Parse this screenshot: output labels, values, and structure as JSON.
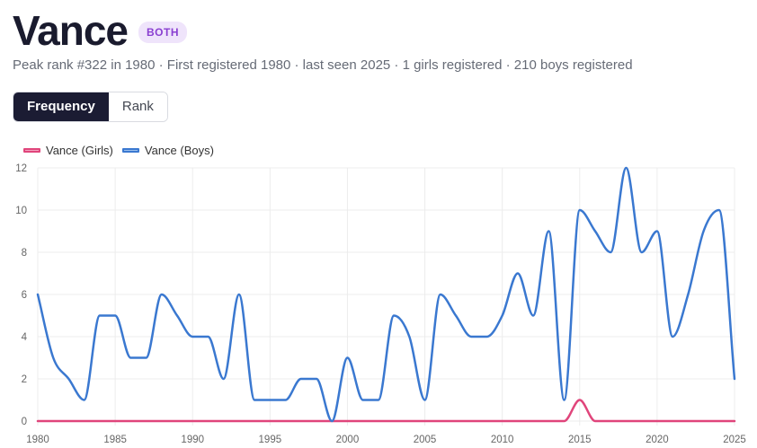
{
  "header": {
    "title": "Vance",
    "badge": "BOTH"
  },
  "subtitle": "Peak rank #322 in 1980 · First registered 1980 · last seen 2025 · 1 girls registered · 210 boys registered",
  "tabs": [
    {
      "label": "Frequency",
      "active": true
    },
    {
      "label": "Rank",
      "active": false
    }
  ],
  "colors": {
    "girls": "#e0457b",
    "boys": "#3a78d0",
    "accent": "#1b1c33"
  },
  "chart_data": {
    "type": "line",
    "x": [
      1980,
      1981,
      1982,
      1983,
      1984,
      1985,
      1986,
      1987,
      1988,
      1989,
      1990,
      1991,
      1992,
      1993,
      1994,
      1995,
      1996,
      1997,
      1998,
      1999,
      2000,
      2001,
      2002,
      2003,
      2004,
      2005,
      2006,
      2007,
      2008,
      2009,
      2010,
      2011,
      2012,
      2013,
      2014,
      2015,
      2016,
      2017,
      2018,
      2019,
      2020,
      2021,
      2022,
      2023,
      2024,
      2025
    ],
    "series": [
      {
        "name": "Vance (Girls)",
        "color": "#e0457b",
        "values": [
          0,
          0,
          0,
          0,
          0,
          0,
          0,
          0,
          0,
          0,
          0,
          0,
          0,
          0,
          0,
          0,
          0,
          0,
          0,
          0,
          0,
          0,
          0,
          0,
          0,
          0,
          0,
          0,
          0,
          0,
          0,
          0,
          0,
          0,
          0,
          1,
          0,
          0,
          0,
          0,
          0,
          0,
          0,
          0,
          0,
          0
        ]
      },
      {
        "name": "Vance (Boys)",
        "color": "#3a78d0",
        "values": [
          6,
          3,
          2,
          1,
          5,
          5,
          3,
          3,
          6,
          5,
          4,
          4,
          2,
          6,
          1,
          1,
          1,
          2,
          2,
          0,
          3,
          1,
          1,
          5,
          4,
          1,
          6,
          5,
          4,
          4,
          5,
          7,
          5,
          9,
          1,
          10,
          9,
          8,
          12,
          8,
          9,
          4,
          6,
          9,
          10,
          2
        ]
      }
    ],
    "xticks": [
      1980,
      1985,
      1990,
      1995,
      2000,
      2005,
      2010,
      2015,
      2020,
      2025
    ],
    "yticks": [
      0,
      2,
      4,
      6,
      8,
      10,
      12
    ],
    "xlim": [
      1980,
      2025
    ],
    "ylim": [
      0,
      12
    ],
    "grid": true,
    "legend": "top-left"
  }
}
